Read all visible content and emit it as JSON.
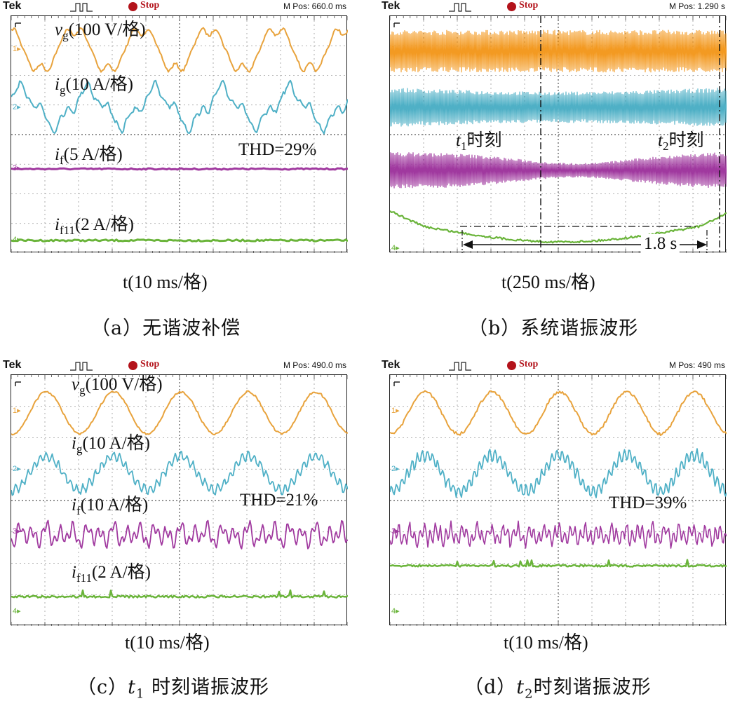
{
  "chart_data": [
    {
      "type": "line",
      "brand": "Tek",
      "status": "Stop",
      "m_pos": "M Pos: 660.0 ms",
      "x_axis": "t(10 ms/格)",
      "caption": "（a）无谐波补偿",
      "channels": [
        {
          "num": "1",
          "color": "#e8a33d",
          "label_var": "v",
          "label_sub": "g",
          "label_scale": "(100 V/格)",
          "waveform": "distorted sine"
        },
        {
          "num": "2",
          "color": "#4fb0c6",
          "label_var": "i",
          "label_sub": "g",
          "label_scale": "(10 A/格)",
          "waveform": "distorted sine"
        },
        {
          "num": "3",
          "color": "#a0399f",
          "label_var": "i",
          "label_sub": "f",
          "label_scale": "(5 A/格)",
          "waveform": "flat"
        },
        {
          "num": "4",
          "color": "#6ab43a",
          "label_var": "i",
          "label_sub": "f11",
          "label_scale": "(2 A/格)",
          "waveform": "flat"
        }
      ],
      "annotations": [
        "THD=29%"
      ]
    },
    {
      "type": "line",
      "brand": "Tek",
      "status": "Stop",
      "m_pos": "M Pos: 1.290 s",
      "x_axis": "t(250 ms/格)",
      "caption": "（b）系统谐振波形",
      "channels": [
        {
          "num": "1",
          "color": "#f39a22",
          "waveform": "dense band"
        },
        {
          "num": "2",
          "color": "#4fb0c6",
          "waveform": "dense band"
        },
        {
          "num": "3",
          "color": "#a0399f",
          "waveform": "dense band, narrowing then widening"
        },
        {
          "num": "4",
          "color": "#6ab43a",
          "waveform": "dip over 1.8 s"
        }
      ],
      "markers": [
        {
          "var": "t",
          "sub": "1",
          "text": "时刻"
        },
        {
          "var": "t",
          "sub": "2",
          "text": "时刻"
        }
      ],
      "annotations": [
        "1.8 s"
      ]
    },
    {
      "type": "line",
      "brand": "Tek",
      "status": "Stop",
      "m_pos": "M Pos: 490.0 ms",
      "x_axis": "t(10 ms/格)",
      "caption_prefix": "（c）",
      "caption_var": "t",
      "caption_sub": "1",
      "caption_suffix": " 时刻谐振波形",
      "channels": [
        {
          "num": "1",
          "color": "#e8a33d",
          "label_var": "v",
          "label_sub": "g",
          "label_scale": "(100 V/格)",
          "waveform": "sine"
        },
        {
          "num": "2",
          "color": "#4fb0c6",
          "label_var": "i",
          "label_sub": "g",
          "label_scale": "(10 A/格)",
          "waveform": "sine with ripple"
        },
        {
          "num": "3",
          "color": "#a0399f",
          "label_var": "i",
          "label_sub": "f",
          "label_scale": "(10 A/格)",
          "waveform": "harmonic oscillation"
        },
        {
          "num": "4",
          "color": "#6ab43a",
          "label_var": "i",
          "label_sub": "f11",
          "label_scale": "(2 A/格)",
          "waveform": "flat with noise"
        }
      ],
      "annotations": [
        "THD=21%"
      ]
    },
    {
      "type": "line",
      "brand": "Tek",
      "status": "Stop",
      "m_pos": "M Pos: 490 ms",
      "x_axis": "t(10 ms/格)",
      "caption_prefix": "（d）",
      "caption_var": "t",
      "caption_sub": "2",
      "caption_suffix": "时刻谐振波形",
      "channels": [
        {
          "num": "1",
          "color": "#e8a33d",
          "waveform": "sine"
        },
        {
          "num": "2",
          "color": "#4fb0c6",
          "waveform": "sine with ripple"
        },
        {
          "num": "3",
          "color": "#a0399f",
          "waveform": "harmonic oscillation"
        },
        {
          "num": "4",
          "color": "#6ab43a",
          "waveform": "flat with noise"
        }
      ],
      "annotations": [
        "THD=39%"
      ]
    }
  ]
}
